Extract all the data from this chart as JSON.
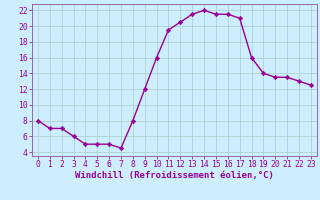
{
  "x": [
    0,
    1,
    2,
    3,
    4,
    5,
    6,
    7,
    8,
    9,
    10,
    11,
    12,
    13,
    14,
    15,
    16,
    17,
    18,
    19,
    20,
    21,
    22,
    23
  ],
  "y": [
    8,
    7,
    7,
    6,
    5,
    5,
    5,
    4.5,
    8,
    12,
    16,
    19.5,
    20.5,
    21.5,
    22,
    21.5,
    21.5,
    21,
    16,
    14,
    13.5,
    13.5,
    13,
    12.5
  ],
  "line_color": "#990099",
  "marker": "D",
  "marker_size": 2.2,
  "line_width": 1.0,
  "bg_color": "#cceeff",
  "grid_color": "#aacccc",
  "xlabel": "Windchill (Refroidissement éolien,°C)",
  "xlabel_color": "#990099",
  "tick_color": "#990099",
  "spine_color": "#9966aa",
  "xlim": [
    -0.5,
    23.5
  ],
  "ylim": [
    3.5,
    22.8
  ],
  "yticks": [
    4,
    6,
    8,
    10,
    12,
    14,
    16,
    18,
    20,
    22
  ],
  "xticks": [
    0,
    1,
    2,
    3,
    4,
    5,
    6,
    7,
    8,
    9,
    10,
    11,
    12,
    13,
    14,
    15,
    16,
    17,
    18,
    19,
    20,
    21,
    22,
    23
  ],
  "tick_fontsize": 5.8,
  "xlabel_fontsize": 6.5
}
